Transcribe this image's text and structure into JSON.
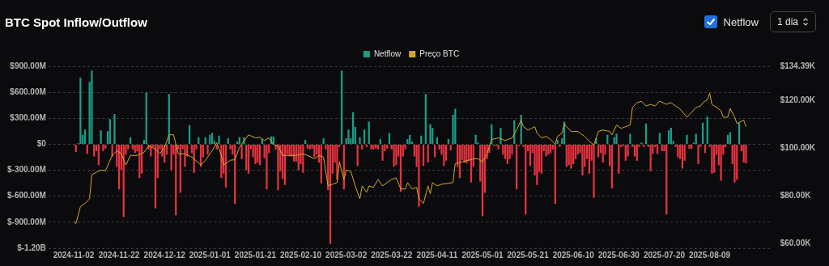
{
  "chart_data": {
    "type": "bar",
    "title": "BTC Spot Inflow/Outflow",
    "legend": "top",
    "grid": "y",
    "x": [
      "2024-11-02",
      "2024-11-03",
      "2024-11-04",
      "2024-11-05",
      "2024-11-06",
      "2024-11-07",
      "2024-11-08",
      "2024-11-09",
      "2024-11-10",
      "2024-11-11",
      "2024-11-12",
      "2024-11-13",
      "2024-11-14",
      "2024-11-15",
      "2024-11-16",
      "2024-11-17",
      "2024-11-18",
      "2024-11-19",
      "2024-11-20",
      "2024-11-21",
      "2024-11-22",
      "2024-11-23",
      "2024-11-24",
      "2024-11-25",
      "2024-11-26",
      "2024-11-27",
      "2024-11-28",
      "2024-11-29",
      "2024-11-30",
      "2024-12-01",
      "2024-12-02",
      "2024-12-03",
      "2024-12-04",
      "2024-12-05",
      "2024-12-06",
      "2024-12-07",
      "2024-12-08",
      "2024-12-09",
      "2024-12-10",
      "2024-12-11",
      "2024-12-12",
      "2024-12-13",
      "2024-12-14",
      "2024-12-15",
      "2024-12-16",
      "2024-12-17",
      "2024-12-18",
      "2024-12-19",
      "2024-12-20",
      "2024-12-21",
      "2024-12-22",
      "2024-12-23",
      "2024-12-24",
      "2024-12-25",
      "2024-12-26",
      "2024-12-27",
      "2024-12-28",
      "2024-12-29",
      "2024-12-30",
      "2024-12-31",
      "2025-01-01",
      "2025-01-02",
      "2025-01-03",
      "2025-01-04",
      "2025-01-05",
      "2025-01-06",
      "2025-01-07",
      "2025-01-08",
      "2025-01-09",
      "2025-01-10",
      "2025-01-11",
      "2025-01-12",
      "2025-01-13",
      "2025-01-14",
      "2025-01-15",
      "2025-01-16",
      "2025-01-17",
      "2025-01-18",
      "2025-01-19",
      "2025-01-20",
      "2025-01-21",
      "2025-01-22",
      "2025-01-23",
      "2025-01-24",
      "2025-01-25",
      "2025-01-26",
      "2025-01-27",
      "2025-01-28",
      "2025-01-29",
      "2025-01-30",
      "2025-01-31",
      "2025-02-01",
      "2025-02-02",
      "2025-02-03",
      "2025-02-04",
      "2025-02-05",
      "2025-02-06",
      "2025-02-07",
      "2025-02-08",
      "2025-02-09",
      "2025-02-10",
      "2025-02-11",
      "2025-02-12",
      "2025-02-13",
      "2025-02-14",
      "2025-02-15",
      "2025-02-16",
      "2025-02-17",
      "2025-02-18",
      "2025-02-19",
      "2025-02-20",
      "2025-02-21",
      "2025-02-22",
      "2025-02-23",
      "2025-02-24",
      "2025-02-25",
      "2025-02-26",
      "2025-02-27",
      "2025-02-28",
      "2025-03-01",
      "2025-03-02",
      "2025-03-03",
      "2025-03-04",
      "2025-03-05",
      "2025-03-06",
      "2025-03-07",
      "2025-03-08",
      "2025-03-09",
      "2025-03-10",
      "2025-03-11",
      "2025-03-12",
      "2025-03-13",
      "2025-03-14",
      "2025-03-15",
      "2025-03-16",
      "2025-03-17",
      "2025-03-18",
      "2025-03-19",
      "2025-03-20",
      "2025-03-21",
      "2025-03-22",
      "2025-03-23",
      "2025-03-24",
      "2025-03-25",
      "2025-03-26",
      "2025-03-27",
      "2025-03-28",
      "2025-03-29",
      "2025-03-30",
      "2025-03-31",
      "2025-04-01",
      "2025-04-02",
      "2025-04-03",
      "2025-04-04",
      "2025-04-05",
      "2025-04-06",
      "2025-04-07",
      "2025-04-08",
      "2025-04-09",
      "2025-04-10",
      "2025-04-11",
      "2025-04-12",
      "2025-04-13",
      "2025-04-14",
      "2025-04-15",
      "2025-04-16",
      "2025-04-17",
      "2025-04-18",
      "2025-04-19",
      "2025-04-20",
      "2025-04-21",
      "2025-04-22",
      "2025-04-23",
      "2025-04-24",
      "2025-04-25",
      "2025-04-26",
      "2025-04-27",
      "2025-04-28",
      "2025-04-29",
      "2025-04-30",
      "2025-05-01",
      "2025-05-02",
      "2025-05-03",
      "2025-05-04",
      "2025-05-05",
      "2025-05-06",
      "2025-05-07",
      "2025-05-08",
      "2025-05-09",
      "2025-05-10",
      "2025-05-11",
      "2025-05-12",
      "2025-05-13",
      "2025-05-14",
      "2025-05-15",
      "2025-05-16",
      "2025-05-17",
      "2025-05-18",
      "2025-05-19",
      "2025-05-20",
      "2025-05-21",
      "2025-05-22",
      "2025-05-23",
      "2025-05-24",
      "2025-05-25",
      "2025-05-26",
      "2025-05-27",
      "2025-05-28",
      "2025-05-29",
      "2025-05-30",
      "2025-05-31",
      "2025-06-01",
      "2025-06-02",
      "2025-06-03",
      "2025-06-04",
      "2025-06-05",
      "2025-06-06",
      "2025-06-07",
      "2025-06-08",
      "2025-06-09",
      "2025-06-10",
      "2025-06-11",
      "2025-06-12",
      "2025-06-13",
      "2025-06-14",
      "2025-06-15",
      "2025-06-16",
      "2025-06-17",
      "2025-06-18",
      "2025-06-19",
      "2025-06-20",
      "2025-06-21",
      "2025-06-22",
      "2025-06-23",
      "2025-06-24",
      "2025-06-25",
      "2025-06-26",
      "2025-06-27",
      "2025-06-28",
      "2025-06-29",
      "2025-06-30",
      "2025-07-01",
      "2025-07-02",
      "2025-07-03",
      "2025-07-04",
      "2025-07-05",
      "2025-07-06",
      "2025-07-07",
      "2025-07-08",
      "2025-07-09",
      "2025-07-10",
      "2025-07-11",
      "2025-07-12",
      "2025-07-13",
      "2025-07-14",
      "2025-07-15",
      "2025-07-16",
      "2025-07-17",
      "2025-07-18",
      "2025-07-19",
      "2025-07-20",
      "2025-07-21",
      "2025-07-22",
      "2025-07-23",
      "2025-07-24",
      "2025-07-25",
      "2025-07-26",
      "2025-07-27",
      "2025-07-28",
      "2025-07-29",
      "2025-07-30",
      "2025-07-31",
      "2025-08-01",
      "2025-08-02",
      "2025-08-03",
      "2025-08-04",
      "2025-08-05",
      "2025-08-06",
      "2025-08-07",
      "2025-08-08",
      "2025-08-09",
      "2025-08-10",
      "2025-08-11",
      "2025-08-12",
      "2025-08-13",
      "2025-08-14",
      "2025-08-15",
      "2025-08-16",
      "2025-08-17",
      "2025-08-18",
      "2025-08-19",
      "2025-08-20",
      "2025-08-21",
      "2025-08-22",
      "2025-08-23",
      "2025-08-24",
      "2025-08-25"
    ],
    "xlim": [
      "2024-11-01T12:00",
      "2025-08-25T12:00"
    ],
    "xticks": [
      "2024-11-02",
      "2024-11-22",
      "2024-12-12",
      "2025-01-01",
      "2025-01-21",
      "2025-02-10",
      "2025-03-02",
      "2025-03-22",
      "2025-04-11",
      "2025-05-01",
      "2025-05-21",
      "2025-06-10",
      "2025-06-30",
      "2025-07-20",
      "2025-08-09"
    ],
    "ylim": [
      -1200000000.0,
      900000000.0
    ],
    "yticks": [
      {
        "value": -1200000000.0,
        "label": "$-1.20B"
      },
      {
        "value": -900000000.0,
        "label": "$-900.00M"
      },
      {
        "value": -600000000.0,
        "label": "$-600.00M"
      },
      {
        "value": -300000000.0,
        "label": "$-300.00M"
      },
      {
        "value": 0,
        "label": "$0"
      },
      {
        "value": 300000000.0,
        "label": "$300.00M"
      },
      {
        "value": 600000000.0,
        "label": "$600.00M"
      },
      {
        "value": 900000000.0,
        "label": "$900.00M"
      }
    ],
    "y2lim": [
      57900,
      134390
    ],
    "y2ticks": [
      {
        "value": 60000,
        "label": "$60.00K"
      },
      {
        "value": 80000,
        "label": "$80.00K"
      },
      {
        "value": 100000,
        "label": "$100.00K"
      },
      {
        "value": 120000,
        "label": "$120.00K"
      },
      {
        "value": 134390,
        "label": "$134.39K"
      }
    ],
    "annotations": [
      "Netflow",
      "1 dia"
    ],
    "series": [
      {
        "name": "Netflow",
        "color": "#1a9e86",
        "values": [
          -10000000.0,
          -90000000.0,
          10000000.0,
          770000000.0,
          110000000.0,
          170000000.0,
          -110000000.0,
          720000000.0,
          850000000.0,
          -140000000.0,
          -80000000.0,
          -240000000.0,
          160000000.0,
          -80000000.0,
          -50000000.0,
          150000000.0,
          290000000.0,
          -140000000.0,
          350000000.0,
          -260000000.0,
          -520000000.0,
          -300000000.0,
          -840000000.0,
          -120000000.0,
          -60000000.0,
          80000000.0,
          -60000000.0,
          -100000000.0,
          -80000000.0,
          -390000000.0,
          -340000000.0,
          50000000.0,
          600000000.0,
          -60000000.0,
          -140000000.0,
          -30000000.0,
          -740000000.0,
          -390000000.0,
          -60000000.0,
          -140000000.0,
          -210000000.0,
          -120000000.0,
          580000000.0,
          -300000000.0,
          -120000000.0,
          -820000000.0,
          -60000000.0,
          -560000000.0,
          -60000000.0,
          -260000000.0,
          -140000000.0,
          220000000.0,
          -100000000.0,
          -330000000.0,
          -60000000.0,
          80000000.0,
          -260000000.0,
          -150000000.0,
          80000000.0,
          -120000000.0,
          110000000.0,
          130000000.0,
          40000000.0,
          -60000000.0,
          100000000.0,
          -390000000.0,
          -340000000.0,
          -500000000.0,
          70000000.0,
          -60000000.0,
          -120000000.0,
          -690000000.0,
          30000000.0,
          80000000.0,
          -170000000.0,
          80000000.0,
          -300000000.0,
          -340000000.0,
          -60000000.0,
          -150000000.0,
          -230000000.0,
          -210000000.0,
          -240000000.0,
          60000000.0,
          -160000000.0,
          -520000000.0,
          -100000000.0,
          90000000.0,
          90000000.0,
          -60000000.0,
          -530000000.0,
          -310000000.0,
          -400000000.0,
          -470000000.0,
          -120000000.0,
          -140000000.0,
          -140000000.0,
          -200000000.0,
          -200000000.0,
          -300000000.0,
          -230000000.0,
          -330000000.0,
          50000000.0,
          -50000000.0,
          -60000000.0,
          -50000000.0,
          -150000000.0,
          -120000000.0,
          -210000000.0,
          -450000000.0,
          70000000.0,
          -60000000.0,
          -530000000.0,
          -1150000000.0,
          -340000000.0,
          -210000000.0,
          -410000000.0,
          -30000000.0,
          850000000.0,
          -520000000.0,
          70000000.0,
          170000000.0,
          70000000.0,
          370000000.0,
          200000000.0,
          -250000000.0,
          80000000.0,
          -60000000.0,
          170000000.0,
          -30000000.0,
          260000000.0,
          -60000000.0,
          -60000000.0,
          -50000000.0,
          -60000000.0,
          60000000.0,
          -190000000.0,
          -80000000.0,
          -50000000.0,
          130000000.0,
          -60000000.0,
          -260000000.0,
          -240000000.0,
          -140000000.0,
          -550000000.0,
          -140000000.0,
          -60000000.0,
          60000000.0,
          110000000.0,
          30000000.0,
          -140000000.0,
          -260000000.0,
          -720000000.0,
          100000000.0,
          -250000000.0,
          580000000.0,
          -210000000.0,
          230000000.0,
          190000000.0,
          -150000000.0,
          80000000.0,
          -60000000.0,
          -120000000.0,
          -250000000.0,
          -190000000.0,
          60000000.0,
          -70000000.0,
          340000000.0,
          410000000.0,
          -260000000.0,
          -390000000.0,
          -180000000.0,
          -210000000.0,
          -220000000.0,
          -190000000.0,
          -440000000.0,
          -260000000.0,
          110000000.0,
          20000000.0,
          -430000000.0,
          -830000000.0,
          -560000000.0,
          -170000000.0,
          -100000000.0,
          230000000.0,
          -20000000.0,
          -20000000.0,
          -60000000.0,
          190000000.0,
          -120000000.0,
          -170000000.0,
          -230000000.0,
          -170000000.0,
          -120000000.0,
          280000000.0,
          -520000000.0,
          -20000000.0,
          340000000.0,
          -30000000.0,
          -810000000.0,
          -80000000.0,
          -250000000.0,
          -100000000.0,
          -360000000.0,
          -470000000.0,
          -320000000.0,
          -340000000.0,
          -80000000.0,
          -140000000.0,
          -120000000.0,
          -100000000.0,
          -60000000.0,
          -690000000.0,
          50000000.0,
          -30000000.0,
          70000000.0,
          260000000.0,
          -260000000.0,
          -240000000.0,
          -280000000.0,
          -230000000.0,
          -170000000.0,
          -120000000.0,
          -100000000.0,
          -360000000.0,
          -260000000.0,
          -170000000.0,
          -340000000.0,
          -190000000.0,
          -620000000.0,
          70000000.0,
          -150000000.0,
          -100000000.0,
          -210000000.0,
          -120000000.0,
          110000000.0,
          -250000000.0,
          -510000000.0,
          80000000.0,
          120000000.0,
          -340000000.0,
          -30000000.0,
          -20000000.0,
          -190000000.0,
          -140000000.0,
          120000000.0,
          -30000000.0,
          -140000000.0,
          -190000000.0,
          -30000000.0,
          20000000.0,
          -30000000.0,
          240000000.0,
          -30000000.0,
          -310000000.0,
          -110000000.0,
          -30000000.0,
          -110000000.0,
          130000000.0,
          -80000000.0,
          -80000000.0,
          -810000000.0,
          160000000.0,
          190000000.0,
          40000000.0,
          -30000000.0,
          -150000000.0,
          -170000000.0,
          -280000000.0,
          -190000000.0,
          110000000.0,
          -50000000.0,
          -50000000.0,
          20000000.0,
          120000000.0,
          -230000000.0,
          -30000000.0,
          250000000.0,
          -100000000.0,
          320000000.0,
          -30000000.0,
          -340000000.0,
          -330000000.0,
          -120000000.0,
          -240000000.0,
          -420000000.0,
          -120000000.0,
          -30000000.0,
          110000000.0,
          140000000.0,
          -230000000.0,
          -440000000.0,
          -410000000.0,
          250000000.0,
          -80000000.0,
          -210000000.0,
          -220000000.0
        ],
        "colors": [
          "#e8333f",
          "#e8333f",
          "#1a9e86",
          "#1a9e86",
          "#1a9e86",
          "#1a9e86",
          "#e8333f",
          "#1a9e86",
          "#1a9e86",
          "#e8333f",
          "#e8333f",
          "#e8333f",
          "#1a9e86",
          "#e8333f",
          "#e8333f",
          "#1a9e86",
          "#1a9e86",
          "#e8333f",
          "#1a9e86",
          "#e8333f",
          "#e8333f",
          "#e8333f",
          "#e8333f",
          "#e8333f",
          "#e8333f",
          "#1a9e86",
          "#e8333f",
          "#e8333f",
          "#e8333f",
          "#e8333f",
          "#e8333f",
          "#1a9e86",
          "#1a9e86",
          "#e8333f",
          "#e8333f",
          "#e8333f",
          "#e8333f",
          "#e8333f",
          "#e8333f",
          "#e8333f",
          "#e8333f",
          "#e8333f",
          "#1a9e86",
          "#e8333f",
          "#e8333f",
          "#e8333f",
          "#e8333f",
          "#e8333f",
          "#e8333f",
          "#e8333f",
          "#e8333f",
          "#1a9e86",
          "#e8333f",
          "#e8333f",
          "#e8333f",
          "#1a9e86",
          "#e8333f",
          "#e8333f",
          "#1a9e86",
          "#e8333f",
          "#1a9e86",
          "#1a9e86",
          "#1a9e86",
          "#e8333f",
          "#1a9e86",
          "#e8333f",
          "#e8333f",
          "#e8333f",
          "#1a9e86",
          "#e8333f",
          "#e8333f",
          "#e8333f",
          "#1a9e86",
          "#1a9e86",
          "#e8333f",
          "#1a9e86",
          "#e8333f",
          "#e8333f",
          "#e8333f",
          "#e8333f",
          "#e8333f",
          "#e8333f",
          "#e8333f",
          "#1a9e86",
          "#e8333f",
          "#e8333f",
          "#e8333f",
          "#1a9e86",
          "#1a9e86",
          "#e8333f",
          "#e8333f",
          "#e8333f",
          "#e8333f",
          "#e8333f",
          "#e8333f",
          "#e8333f",
          "#e8333f",
          "#e8333f",
          "#e8333f",
          "#e8333f",
          "#e8333f",
          "#e8333f",
          "#1a9e86",
          "#e8333f",
          "#e8333f",
          "#e8333f",
          "#e8333f",
          "#e8333f",
          "#e8333f",
          "#e8333f",
          "#1a9e86",
          "#e8333f",
          "#e8333f",
          "#e8333f",
          "#e8333f",
          "#e8333f",
          "#e8333f",
          "#e8333f",
          "#1a9e86",
          "#e8333f",
          "#1a9e86",
          "#1a9e86",
          "#1a9e86",
          "#1a9e86",
          "#1a9e86",
          "#e8333f",
          "#1a9e86",
          "#e8333f",
          "#1a9e86",
          "#e8333f",
          "#1a9e86",
          "#e8333f",
          "#e8333f",
          "#e8333f",
          "#e8333f",
          "#1a9e86",
          "#e8333f",
          "#e8333f",
          "#e8333f",
          "#1a9e86",
          "#e8333f",
          "#e8333f",
          "#e8333f",
          "#e8333f",
          "#e8333f",
          "#e8333f",
          "#e8333f",
          "#1a9e86",
          "#1a9e86",
          "#1a9e86",
          "#e8333f",
          "#e8333f",
          "#e8333f",
          "#1a9e86",
          "#e8333f",
          "#1a9e86",
          "#e8333f",
          "#1a9e86",
          "#1a9e86",
          "#e8333f",
          "#1a9e86",
          "#e8333f",
          "#e8333f",
          "#e8333f",
          "#e8333f",
          "#1a9e86",
          "#e8333f",
          "#1a9e86",
          "#1a9e86",
          "#e8333f",
          "#e8333f",
          "#e8333f",
          "#e8333f",
          "#e8333f",
          "#e8333f",
          "#e8333f",
          "#e8333f",
          "#1a9e86",
          "#1a9e86",
          "#e8333f",
          "#e8333f",
          "#e8333f",
          "#e8333f",
          "#e8333f",
          "#1a9e86",
          "#e8333f",
          "#e8333f",
          "#e8333f",
          "#1a9e86",
          "#e8333f",
          "#e8333f",
          "#e8333f",
          "#e8333f",
          "#e8333f",
          "#1a9e86",
          "#e8333f",
          "#e8333f",
          "#1a9e86",
          "#e8333f",
          "#e8333f",
          "#e8333f",
          "#e8333f",
          "#e8333f",
          "#e8333f",
          "#e8333f",
          "#e8333f",
          "#e8333f",
          "#e8333f",
          "#e8333f",
          "#e8333f",
          "#e8333f",
          "#e8333f",
          "#e8333f",
          "#1a9e86",
          "#e8333f",
          "#1a9e86",
          "#1a9e86",
          "#e8333f",
          "#e8333f",
          "#e8333f",
          "#e8333f",
          "#e8333f",
          "#e8333f",
          "#e8333f",
          "#e8333f",
          "#e8333f",
          "#e8333f",
          "#e8333f",
          "#e8333f",
          "#e8333f",
          "#1a9e86",
          "#e8333f",
          "#e8333f",
          "#e8333f",
          "#e8333f",
          "#1a9e86",
          "#e8333f",
          "#e8333f",
          "#1a9e86",
          "#1a9e86",
          "#e8333f",
          "#e8333f",
          "#e8333f",
          "#e8333f",
          "#e8333f",
          "#1a9e86",
          "#e8333f",
          "#e8333f",
          "#e8333f",
          "#e8333f",
          "#1a9e86",
          "#e8333f",
          "#1a9e86",
          "#e8333f",
          "#e8333f",
          "#e8333f",
          "#e8333f",
          "#e8333f",
          "#1a9e86",
          "#e8333f",
          "#e8333f",
          "#e8333f",
          "#1a9e86",
          "#1a9e86",
          "#1a9e86",
          "#e8333f",
          "#e8333f",
          "#e8333f",
          "#e8333f",
          "#e8333f",
          "#1a9e86",
          "#e8333f",
          "#e8333f",
          "#1a9e86",
          "#1a9e86",
          "#e8333f",
          "#e8333f",
          "#1a9e86",
          "#e8333f",
          "#1a9e86",
          "#e8333f",
          "#e8333f",
          "#e8333f",
          "#e8333f",
          "#e8333f",
          "#e8333f",
          "#e8333f",
          "#e8333f",
          "#1a9e86",
          "#1a9e86",
          "#e8333f",
          "#e8333f",
          "#e8333f",
          "#1a9e86",
          "#e8333f",
          "#e8333f",
          "#e8333f"
        ]
      },
      {
        "name": "Preço BTC",
        "type": "line",
        "axis": "y2",
        "color": "#d4a72c",
        "x": [
          "2024-11-02",
          "2024-11-03",
          "2024-11-05",
          "2024-11-07",
          "2024-11-09",
          "2024-11-10",
          "2024-11-12",
          "2024-11-14",
          "2024-11-16",
          "2024-11-19",
          "2024-11-21",
          "2024-11-23",
          "2024-11-25",
          "2024-11-27",
          "2024-11-30",
          "2024-12-03",
          "2024-12-05",
          "2024-12-08",
          "2024-12-10",
          "2024-12-12",
          "2024-12-14",
          "2024-12-16",
          "2024-12-18",
          "2024-12-21",
          "2024-12-24",
          "2024-12-28",
          "2024-12-30",
          "2025-01-02",
          "2025-01-04",
          "2025-01-06",
          "2025-01-07",
          "2025-01-10",
          "2025-01-12",
          "2025-01-14",
          "2025-01-16",
          "2025-01-18",
          "2025-01-21",
          "2025-01-23",
          "2025-01-25",
          "2025-01-27",
          "2025-01-29",
          "2025-01-31",
          "2025-02-02",
          "2025-02-05",
          "2025-02-08",
          "2025-02-11",
          "2025-02-13",
          "2025-02-16",
          "2025-02-18",
          "2025-02-20",
          "2025-02-22",
          "2025-02-24",
          "2025-02-26",
          "2025-02-27",
          "2025-03-01",
          "2025-03-02",
          "2025-03-04",
          "2025-03-06",
          "2025-03-08",
          "2025-03-09",
          "2025-03-11",
          "2025-03-12",
          "2025-03-14",
          "2025-03-16",
          "2025-03-18",
          "2025-03-20",
          "2025-03-22",
          "2025-03-24",
          "2025-03-26",
          "2025-03-28",
          "2025-03-29",
          "2025-03-31",
          "2025-04-02",
          "2025-04-03",
          "2025-04-05",
          "2025-04-07",
          "2025-04-08",
          "2025-04-09",
          "2025-04-11",
          "2025-04-13",
          "2025-04-16",
          "2025-04-18",
          "2025-04-19",
          "2025-04-22",
          "2025-04-25",
          "2025-04-27",
          "2025-04-29",
          "2025-05-01",
          "2025-05-03",
          "2025-05-05",
          "2025-05-08",
          "2025-05-11",
          "2025-05-14",
          "2025-05-16",
          "2025-05-18",
          "2025-05-19",
          "2025-05-21",
          "2025-05-24",
          "2025-05-25",
          "2025-05-27",
          "2025-05-29",
          "2025-05-31",
          "2025-06-02",
          "2025-06-03",
          "2025-06-05",
          "2025-06-06",
          "2025-06-07",
          "2025-06-09",
          "2025-06-12",
          "2025-06-13",
          "2025-06-15",
          "2025-06-17",
          "2025-06-19",
          "2025-06-21",
          "2025-06-23",
          "2025-06-26",
          "2025-06-27",
          "2025-06-29",
          "2025-07-01",
          "2025-07-03",
          "2025-07-05",
          "2025-07-06",
          "2025-07-08",
          "2025-07-10",
          "2025-07-12",
          "2025-07-14",
          "2025-07-16",
          "2025-07-18",
          "2025-07-21",
          "2025-07-23",
          "2025-07-25",
          "2025-07-27",
          "2025-07-30",
          "2025-08-01",
          "2025-08-03",
          "2025-08-05",
          "2025-08-06",
          "2025-08-08",
          "2025-08-09",
          "2025-08-10",
          "2025-08-12",
          "2025-08-14",
          "2025-08-15",
          "2025-08-17",
          "2025-08-18",
          "2025-08-20",
          "2025-08-21",
          "2025-08-23",
          "2025-08-24",
          "2025-08-25"
        ],
        "values": [
          69100,
          68300,
          75400,
          76700,
          78700,
          88800,
          89800,
          90800,
          90500,
          96900,
          98900,
          97600,
          92900,
          96900,
          96900,
          98200,
          101000,
          99600,
          97600,
          100300,
          105600,
          105600,
          97600,
          97600,
          96200,
          92900,
          94900,
          98900,
          102300,
          96900,
          92900,
          94900,
          95100,
          100300,
          103000,
          105600,
          104300,
          104500,
          103200,
          104300,
          101500,
          100900,
          96900,
          96900,
          96900,
          97600,
          96900,
          95500,
          96900,
          96200,
          84100,
          84800,
          85500,
          94200,
          86800,
          90800,
          90200,
          84100,
          78700,
          84100,
          81400,
          84100,
          83500,
          86800,
          84100,
          85500,
          86800,
          87500,
          82800,
          82800,
          85500,
          82800,
          83500,
          78700,
          76700,
          84100,
          80800,
          85500,
          84100,
          84800,
          85200,
          85500,
          93500,
          94200,
          94900,
          95500,
          95500,
          94200,
          97600,
          103600,
          104300,
          103200,
          104300,
          107600,
          111700,
          109000,
          107600,
          109000,
          106300,
          104300,
          104900,
          103600,
          101600,
          104900,
          106300,
          110300,
          109000,
          107000,
          107000,
          106300,
          104900,
          102900,
          101300,
          107000,
          107600,
          107000,
          105600,
          109700,
          108300,
          109000,
          109700,
          117100,
          119100,
          119700,
          117700,
          118400,
          117700,
          119700,
          118400,
          119100,
          117700,
          116400,
          113000,
          115000,
          117100,
          117700,
          119100,
          120400,
          123100,
          118400,
          117100,
          115700,
          113000,
          113000,
          116700,
          113000,
          110300,
          111300,
          111700,
          109000
        ]
      }
    ]
  }
}
